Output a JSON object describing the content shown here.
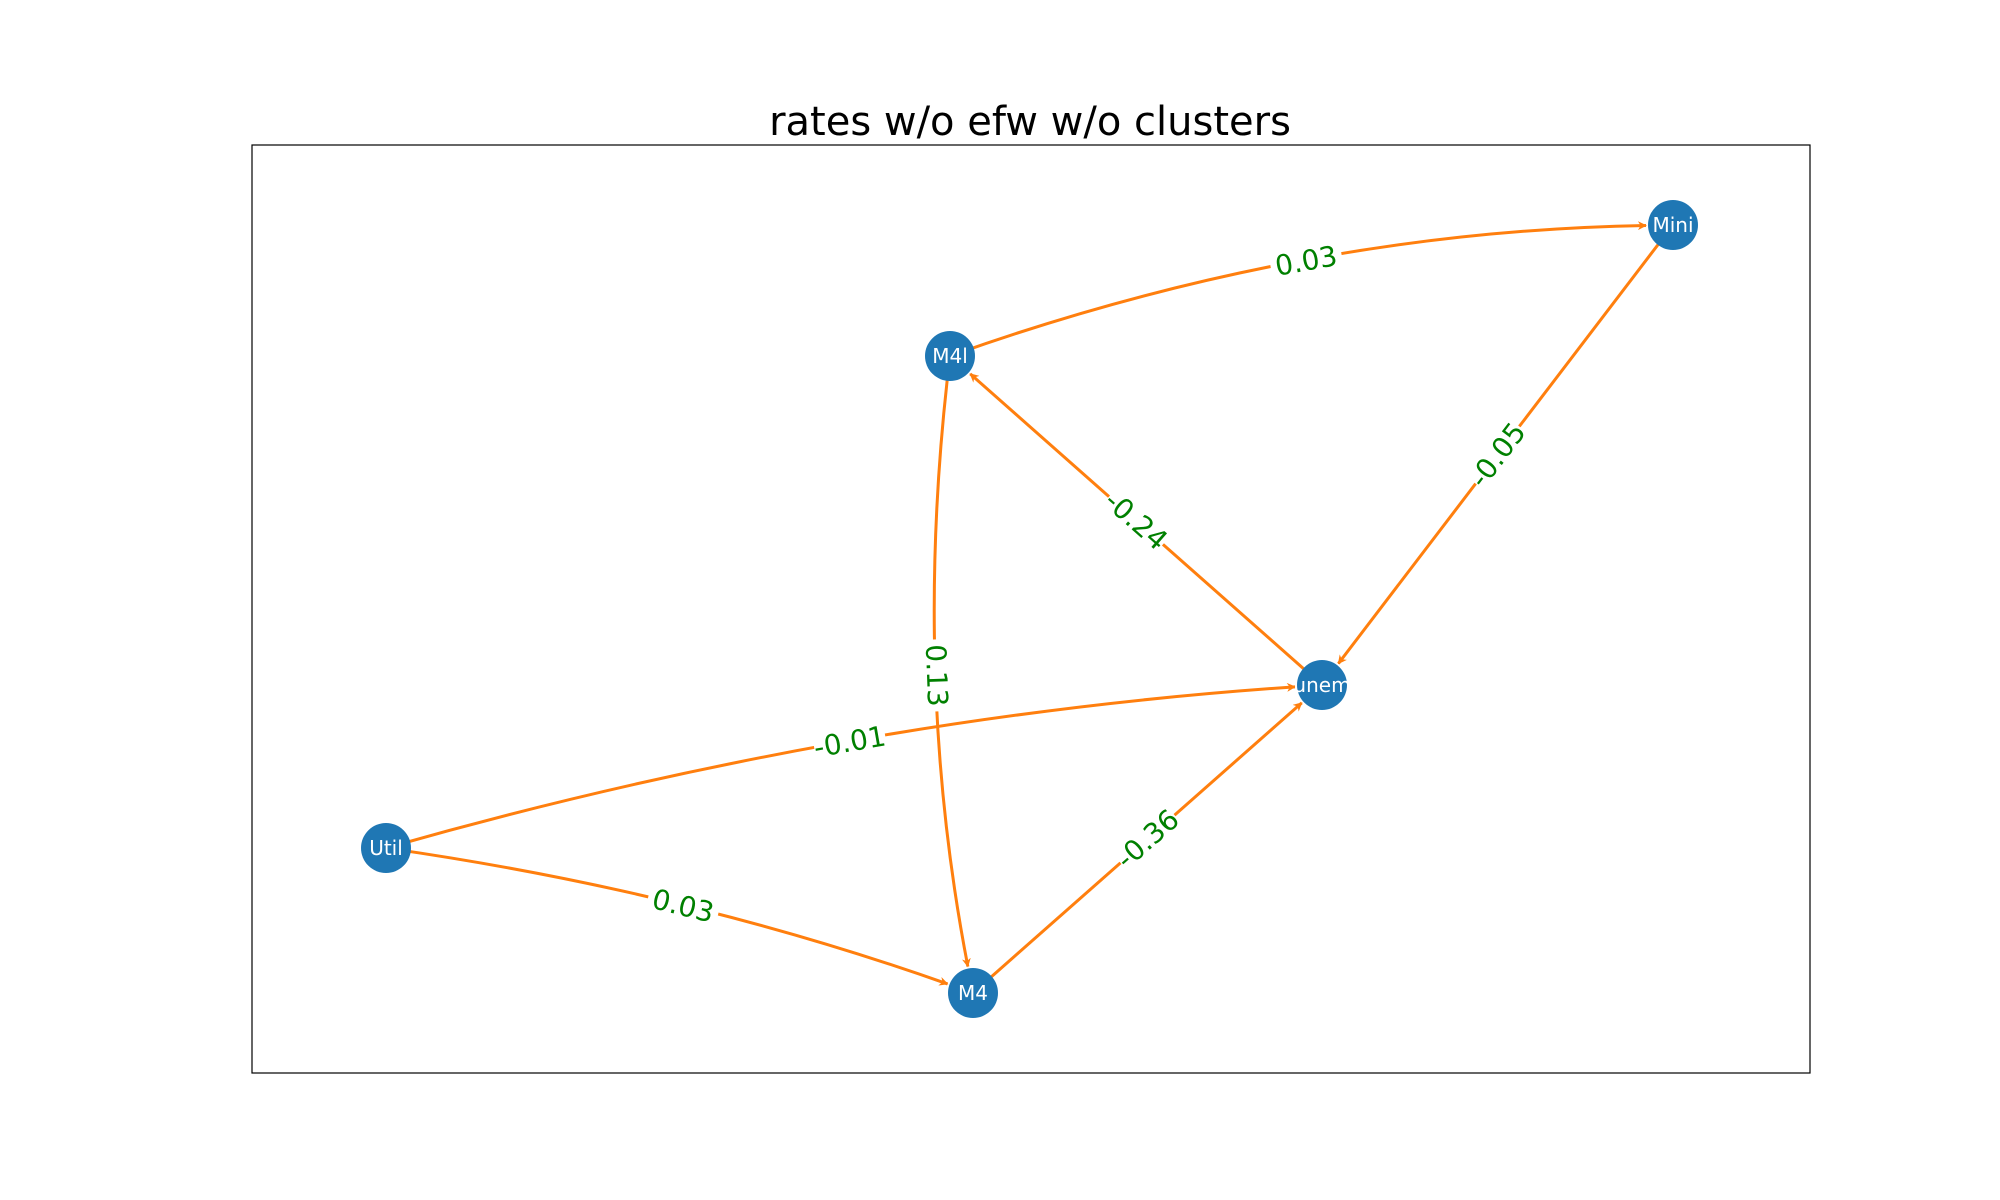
{
  "title": "rates w/o efw w/o clusters",
  "colors": {
    "node": "#1f77b4",
    "edge": "#ff7f0e",
    "edge_label": "#008000",
    "frame": "#000000"
  },
  "nodes": [
    {
      "id": "Mini",
      "label": "Mini"
    },
    {
      "id": "M4l",
      "label": "M4l"
    },
    {
      "id": "unem",
      "label": "unem"
    },
    {
      "id": "Util",
      "label": "Util"
    },
    {
      "id": "M4",
      "label": "M4"
    }
  ],
  "edges": [
    {
      "from": "M4l",
      "to": "Mini",
      "label": "0.03"
    },
    {
      "from": "Mini",
      "to": "unem",
      "label": "-0.05"
    },
    {
      "from": "unem",
      "to": "M4l",
      "label": "-0.24"
    },
    {
      "from": "M4l",
      "to": "M4",
      "label": "0.13"
    },
    {
      "from": "Util",
      "to": "unem",
      "label": "-0.01"
    },
    {
      "from": "Util",
      "to": "M4",
      "label": "0.03"
    },
    {
      "from": "M4",
      "to": "unem",
      "label": "-0.36"
    }
  ]
}
